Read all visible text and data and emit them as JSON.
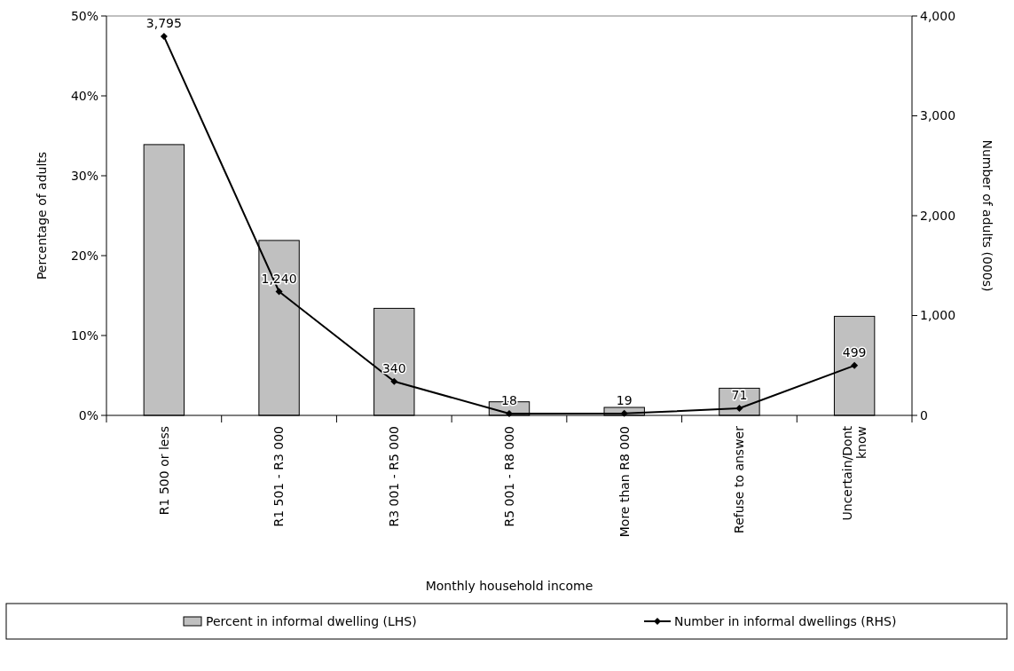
{
  "chart_data": {
    "type": "bar",
    "xlabel": "Monthly household income",
    "ylabel": "Percentage of adults",
    "y2label": "Number of adults (000s)",
    "categories": [
      "R1 500 or less",
      "R1 501 - R3 000",
      "R3 001 - R5 000",
      "R5 001 - R8 000",
      "More than R8 000",
      "Refuse to answer",
      "Uncertain/Dont know"
    ],
    "series": [
      {
        "name": "Percent in informal dwelling (LHS)",
        "color": "#c0c0c0",
        "values": [
          33.9,
          21.9,
          13.4,
          1.7,
          1.0,
          3.4,
          12.4
        ]
      },
      {
        "name": "Number in informal dwellings (RHS)",
        "type": "line",
        "axis": "y2",
        "color": "#000000",
        "marker": "diamond",
        "values": [
          3795,
          1240,
          340,
          18,
          19,
          71,
          499
        ],
        "value_labels": [
          "3,795",
          "1,240",
          "340",
          "18",
          "19",
          "71",
          "499"
        ]
      }
    ],
    "ylim": [
      0,
      50
    ],
    "yticks": [
      {
        "value": 0,
        "label": "0%"
      },
      {
        "value": 10,
        "label": "10%"
      },
      {
        "value": 20,
        "label": "20%"
      },
      {
        "value": 30,
        "label": "30%"
      },
      {
        "value": 40,
        "label": "40%"
      },
      {
        "value": 50,
        "label": "50%"
      }
    ],
    "y2lim": [
      0,
      4000
    ],
    "y2ticks": [
      {
        "value": 0,
        "label": "0"
      },
      {
        "value": 1000,
        "label": "1,000"
      },
      {
        "value": 2000,
        "label": "2,000"
      },
      {
        "value": 3000,
        "label": "3,000"
      },
      {
        "value": 4000,
        "label": "4,000"
      }
    ],
    "grid": false,
    "legend": "bottom"
  }
}
